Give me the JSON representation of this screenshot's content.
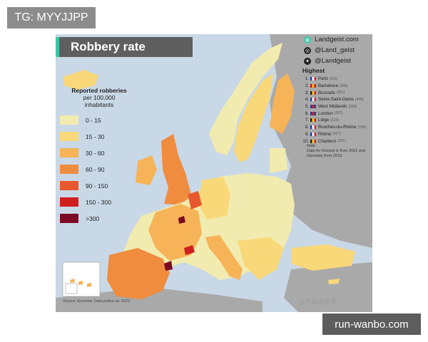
{
  "title": "Robbery rate",
  "legend": {
    "title_line1": "Reported robberies",
    "title_line2": "per 100,000",
    "title_line3": "inhabitants",
    "items": [
      {
        "label": "0  -  15",
        "color": "#f2ebaf"
      },
      {
        "label": "15  -  30",
        "color": "#f8d879"
      },
      {
        "label": "30  -  60",
        "color": "#f6b357"
      },
      {
        "label": "60  -  90",
        "color": "#f08c3e"
      },
      {
        "label": "90  -  150",
        "color": "#e8582e"
      },
      {
        "label": "150 - 300",
        "color": "#cf1f1f"
      },
      {
        "label": ">300",
        "color": "#7c0a22"
      }
    ]
  },
  "brand": {
    "site": "Landgeist.com",
    "instagram": "@Land_geist",
    "twitter": "@Landgeist"
  },
  "highest": {
    "title": "Highest",
    "items": [
      {
        "rank": "1.",
        "name": "Paris",
        "value": "(611)",
        "flag": [
          "#1f3f9a",
          "#ffffff",
          "#d4202a"
        ]
      },
      {
        "rank": "2.",
        "name": "Barcelona",
        "value": "(396)",
        "flag": [
          "#c8102e",
          "#ffc400",
          "#c8102e"
        ]
      },
      {
        "rank": "3.",
        "name": "Brussels",
        "value": "(381)",
        "flag": [
          "#222222",
          "#f7d117",
          "#d4202a"
        ]
      },
      {
        "rank": "4.",
        "name": "Seine-Saint-Denis",
        "value": "(349)",
        "flag": [
          "#1f3f9a",
          "#ffffff",
          "#d4202a"
        ]
      },
      {
        "rank": "5.",
        "name": "West Midlands",
        "value": "(259)",
        "flag": [
          "#1f3f9a",
          "#d4202a",
          "#1f3f9a"
        ]
      },
      {
        "rank": "6.",
        "name": "London",
        "value": "(257)",
        "flag": [
          "#1f3f9a",
          "#d4202a",
          "#1f3f9a"
        ]
      },
      {
        "rank": "7.",
        "name": "Liège",
        "value": "(215)",
        "flag": [
          "#222222",
          "#f7d117",
          "#d4202a"
        ]
      },
      {
        "rank": "8.",
        "name": "Bouches-du-Rhône",
        "value": "(209)",
        "flag": [
          "#1f3f9a",
          "#ffffff",
          "#d4202a"
        ]
      },
      {
        "rank": "9.",
        "name": "Rhône",
        "value": "(207)",
        "flag": [
          "#1f3f9a",
          "#ffffff",
          "#d4202a"
        ]
      },
      {
        "rank": "10.",
        "name": "Charleroi",
        "value": "(201)",
        "flag": [
          "#222222",
          "#f7d117",
          "#d4202a"
        ]
      }
    ]
  },
  "note": {
    "label": "Note:",
    "text": "Data for Kosovo is from 2021 and Germany from 2019."
  },
  "source": "Source: Eurostat, Data.police.uk, 2022",
  "watermark": "@千尋環世界",
  "tag_top": "TG: MYYJJPP",
  "tag_bottom": "run-wanbo.com",
  "colors": {
    "sea": "#c9d8e6",
    "no_data": "#a9a9a9",
    "title_bg": "#5f5f5f",
    "title_accent": "#39c8a7"
  }
}
